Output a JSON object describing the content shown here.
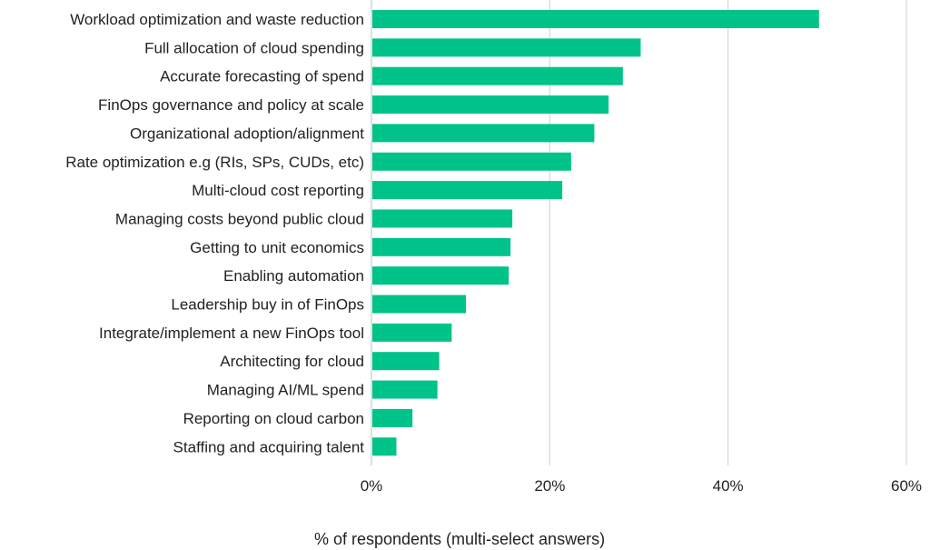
{
  "chart_data": {
    "type": "bar",
    "orientation": "horizontal",
    "title": "",
    "xlabel": "% of respondents (multi-select answers)",
    "ylabel": "",
    "xlim": [
      0,
      60
    ],
    "x_ticks": [
      0,
      20,
      40,
      60
    ],
    "x_tick_labels": [
      "0%",
      "20%",
      "40%",
      "60%"
    ],
    "grid": "vertical",
    "bar_color": "#00c389",
    "gridline_color": "#cfcfcf",
    "text_color": "#222222",
    "categories": [
      "Workload optimization and waste reduction",
      "Full allocation of cloud spending",
      "Accurate forecasting of spend",
      "FinOps governance and policy at scale",
      "Organizational adoption/alignment",
      "Rate optimization e.g (RIs, SPs, CUDs, etc)",
      "Multi-cloud cost reporting",
      "Managing costs beyond public cloud",
      "Getting to unit economics",
      "Enabling automation",
      "Leadership buy in of FinOps",
      "Integrate/implement a new FinOps tool",
      "Architecting for cloud",
      "Managing AI/ML spend",
      "Reporting on cloud carbon",
      "Staffing and acquiring talent"
    ],
    "values": [
      50.2,
      30.2,
      28.2,
      26.6,
      25.0,
      22.4,
      21.4,
      15.8,
      15.6,
      15.4,
      10.6,
      9.0,
      7.6,
      7.4,
      4.6,
      2.8
    ]
  }
}
